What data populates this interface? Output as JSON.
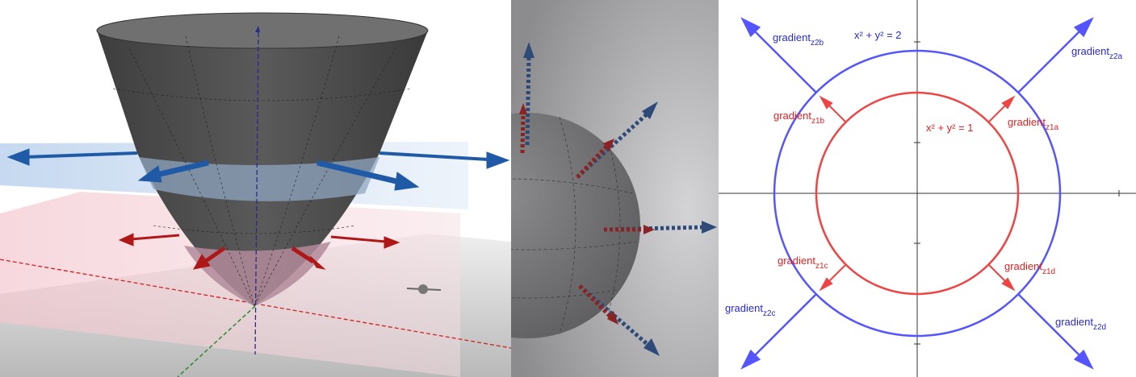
{
  "colors": {
    "blue": "#5555ff",
    "red": "#ee4444",
    "dark_blue_arrow": "#1f5aa6",
    "dark_red_arrow": "#b01818",
    "surface": "#4a4a4a",
    "axis": "#333333"
  },
  "diagram2d": {
    "outer_circle_label": "x² + y² = 2",
    "inner_circle_label": "x² + y² = 1",
    "gradients": [
      {
        "id": "z2a",
        "base": "gradient",
        "sub": "z2a",
        "color": "blue"
      },
      {
        "id": "z2b",
        "base": "gradient",
        "sub": "z2b",
        "color": "blue"
      },
      {
        "id": "z2c",
        "base": "gradient",
        "sub": "z2c",
        "color": "blue"
      },
      {
        "id": "z2d",
        "base": "gradient",
        "sub": "z2d",
        "color": "blue"
      },
      {
        "id": "z1a",
        "base": "gradient",
        "sub": "z1a",
        "color": "red"
      },
      {
        "id": "z1b",
        "base": "gradient",
        "sub": "z1b",
        "color": "red"
      },
      {
        "id": "z1c",
        "base": "gradient",
        "sub": "z1c",
        "color": "red"
      },
      {
        "id": "z1d",
        "base": "gradient",
        "sub": "z1d",
        "color": "red"
      }
    ]
  }
}
